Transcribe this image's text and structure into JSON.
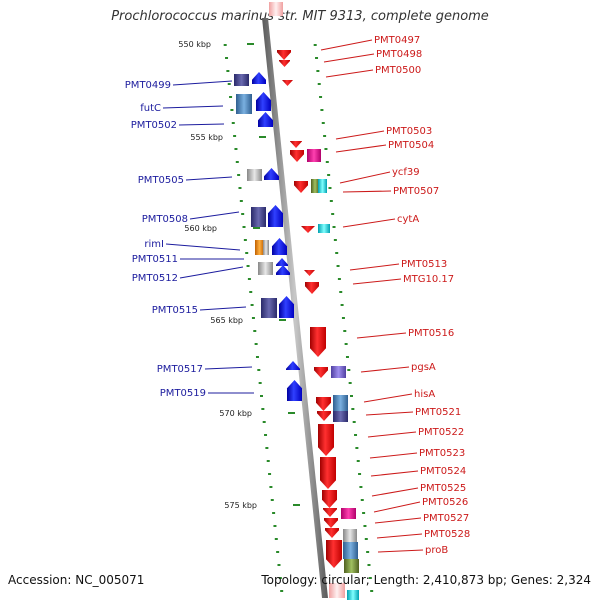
{
  "title": "Prochlorococcus marinus str. MIT 9313, complete genome",
  "footer": {
    "accession": "Accession: NC_005071",
    "topology": "Topology: circular; Length: 2,410,873 bp; Genes: 2,324"
  },
  "ruler": [
    "550 kbp",
    "555 kbp",
    "560 kbp",
    "565 kbp",
    "570 kbp",
    "575 kbp"
  ],
  "left_labels": [
    "PMT0499",
    "futC",
    "PMT0502",
    "PMT0505",
    "PMT0508",
    "rimI",
    "PMT0511",
    "PMT0512",
    "PMT0515",
    "PMT0517",
    "PMT0519"
  ],
  "right_labels": [
    "PMT0497",
    "PMT0498",
    "PMT0500",
    "PMT0503",
    "PMT0504",
    "ycf39",
    "PMT0507",
    "cytA",
    "PMT0513",
    "MTG10.17",
    "PMT0516",
    "pgsA",
    "hisA",
    "PMT0521",
    "PMT0522",
    "PMT0523",
    "PMT0524",
    "PMT0525",
    "PMT0526",
    "PMT0527",
    "PMT0528",
    "proB"
  ],
  "colors": {
    "forward_strand": "#1a1ae6",
    "reverse_strand": "#e61a1a",
    "backbone": "#888888",
    "tick": "#2a8a2a",
    "label_left": "#1c1c9e",
    "label_right": "#cc1a1a"
  }
}
